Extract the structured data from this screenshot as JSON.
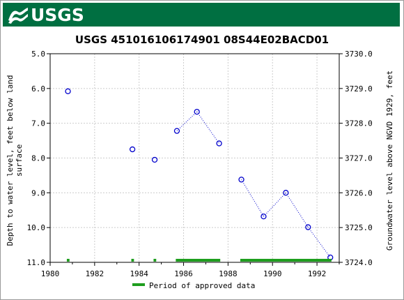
{
  "header": {
    "logo_text": "USGS",
    "brand_color": "#006f41",
    "logo_icon": "usgs-wave-icon"
  },
  "chart_data": {
    "type": "scatter",
    "title": "USGS 451016106174901 08S44E02BACD01",
    "ylabel_left": "Depth to water level, feet below land surface",
    "ylabel_left_lines": [
      "Depth to water level, feet below land",
      "surface"
    ],
    "ylabel_right": "Groundwater level above NGVD 1929, feet",
    "x_ticks": [
      "1980",
      "1982",
      "1984",
      "1986",
      "1988",
      "1990",
      "1992"
    ],
    "xlim": [
      1980,
      1993
    ],
    "y_left_ticks": [
      "5.0",
      "6.0",
      "7.0",
      "8.0",
      "9.0",
      "10.0",
      "11.0"
    ],
    "ylim_left": [
      5.0,
      11.0
    ],
    "y_left_inverted": true,
    "y_right_ticks": [
      "3730.0",
      "3729.0",
      "3728.0",
      "3727.0",
      "3726.0",
      "3725.0",
      "3724.0"
    ],
    "ylim_right": [
      3724.0,
      3730.0
    ],
    "grid": true,
    "marker_color": "#0000cc",
    "line_style": "dotted",
    "points": [
      {
        "x": 1980.8,
        "y": 6.08,
        "segment": 0
      },
      {
        "x": 1983.7,
        "y": 7.75,
        "segment": 1
      },
      {
        "x": 1984.7,
        "y": 8.05,
        "segment": 2
      },
      {
        "x": 1985.7,
        "y": 7.22,
        "segment": 3
      },
      {
        "x": 1986.6,
        "y": 6.67,
        "segment": 3
      },
      {
        "x": 1987.6,
        "y": 7.58,
        "segment": 3
      },
      {
        "x": 1988.6,
        "y": 8.62,
        "segment": 4
      },
      {
        "x": 1989.6,
        "y": 9.68,
        "segment": 4
      },
      {
        "x": 1990.6,
        "y": 9.0,
        "segment": 4
      },
      {
        "x": 1991.6,
        "y": 9.99,
        "segment": 4
      },
      {
        "x": 1992.6,
        "y": 10.86,
        "segment": 4
      }
    ],
    "approved_periods": [
      [
        1980.75,
        1980.87
      ],
      [
        1983.65,
        1983.77
      ],
      [
        1984.65,
        1984.77
      ],
      [
        1985.65,
        1987.65
      ],
      [
        1988.55,
        1992.65
      ]
    ],
    "approved_color": "#1e9e1e",
    "legend": {
      "label": "Period of approved data",
      "position": "bottom-center"
    }
  }
}
